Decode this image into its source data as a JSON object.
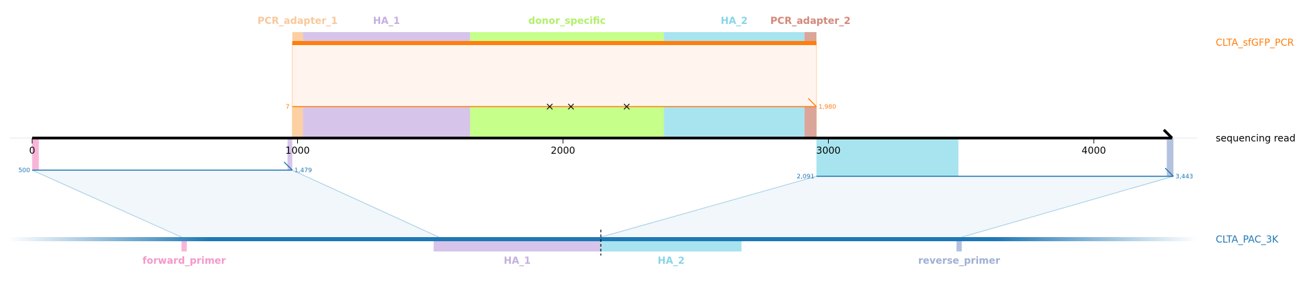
{
  "reference": {
    "name": "sequencing read",
    "ticks": [
      "0",
      "1000",
      "2000",
      "3000",
      "4000"
    ],
    "tick_values": [
      0,
      1000,
      2000,
      3000,
      4000
    ],
    "length": 4300
  },
  "amplicon": {
    "name": "CLTA_sfGFP_PCR",
    "color": "#ff7f0e",
    "features": [
      {
        "label": "PCR_adapter_1",
        "color": "#fdd0a2",
        "label_color": "#f9c89b",
        "start": 980,
        "end": 1020
      },
      {
        "label": "HA_1",
        "color": "#d6c4ea",
        "label_color": "#c5b0e0",
        "start": 1020,
        "end": 1650
      },
      {
        "label": "donor_specific",
        "color": "#c6ff8a",
        "label_color": "#b2f06a",
        "start": 1650,
        "end": 2380
      },
      {
        "label": "HA_2",
        "color": "#a8e4ef",
        "label_color": "#88d6e6",
        "start": 2380,
        "end": 2910
      },
      {
        "label": "PCR_adapter_2",
        "color": "#dba59a",
        "label_color": "#d38878",
        "start": 2910,
        "end": 2955
      }
    ],
    "alignment": {
      "start_label": "7",
      "end_label": "1,980",
      "ref_start": 980,
      "ref_end": 2955
    },
    "mismatches": [
      1950,
      2030,
      2240
    ]
  },
  "target": {
    "name": "CLTA_PAC_3K",
    "color": "#1f77b4",
    "cut_site": 2150,
    "features": [
      {
        "label": "forward_primer",
        "color": "#f7b6d9",
        "label_color": "#f598c9",
        "start": 570,
        "end": 590
      },
      {
        "label": "HA_1",
        "color": "#d6c4ea",
        "label_color": "#c5b0e0",
        "start": 1520,
        "end": 2150
      },
      {
        "label": "HA_2",
        "color": "#a8e4ef",
        "label_color": "#88d6e6",
        "start": 2150,
        "end": 2680
      },
      {
        "label": "reverse_primer",
        "color": "#b4c2df",
        "label_color": "#9fb0d6",
        "start": 3490,
        "end": 3510
      }
    ],
    "alignments": [
      {
        "start_label": "500",
        "end_label": "1,479",
        "ref_start": 0,
        "ref_end": 980,
        "target_start": 570,
        "target_end": 1540,
        "end_features": [
          {
            "color": "#f7b6d9",
            "start": 0,
            "end": 25
          },
          {
            "color": "#d6c4ea",
            "start": 962,
            "end": 980
          }
        ]
      },
      {
        "start_label": "2,091",
        "end_label": "3,443",
        "ref_start": 2955,
        "ref_end": 4300,
        "target_start": 2150,
        "target_end": 3510,
        "end_features": [
          {
            "color": "#a8e4ef",
            "start": 2955,
            "end": 3490
          },
          {
            "color": "#b4c2df",
            "start": 4275,
            "end": 4300
          }
        ]
      }
    ]
  }
}
